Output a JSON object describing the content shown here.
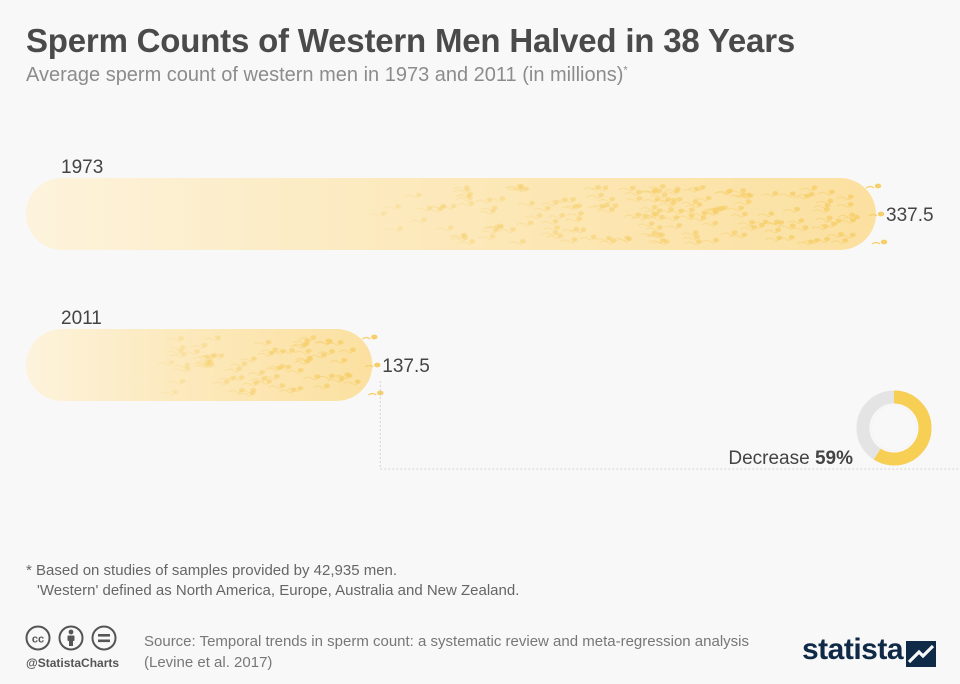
{
  "header": {
    "title": "Sperm Counts of Western Men Halved in 38 Years",
    "subtitle": "Average sperm count of western men in 1973 and 2011 (in millions)",
    "subtitle_marker": "*"
  },
  "chart_data": {
    "type": "bar",
    "orientation": "horizontal",
    "title": "Sperm Counts of Western Men Halved in 38 Years",
    "subtitle": "Average sperm count of western men in 1973 and 2011 (in millions)*",
    "categories": [
      "1973",
      "2011"
    ],
    "values": [
      337.5,
      137.5
    ],
    "value_labels": [
      "337.5",
      "137.5"
    ],
    "annotation": {
      "label": "Decrease",
      "value_label": "59%",
      "value": 0.59
    },
    "colors": {
      "bar_start": "#fdf1d8",
      "bar_end": "#fbe2a2",
      "sperm": "#f6cf6a",
      "donut_fill": "#f8cf55",
      "donut_track": "#e4e4e4"
    }
  },
  "notes": {
    "line1": "* Based on studies of samples provided by 42,935 men.",
    "line2": "'Western' defined as North America, Europe, Australia and New Zealand."
  },
  "footer": {
    "handle": "@StatistaCharts",
    "source": "Source: Temporal trends in sperm count: a systematic review and meta-regression analysis (Levine et al. 2017)",
    "logo_text": "statista",
    "license_icons": [
      "cc-icon",
      "attribution-icon",
      "no-derivatives-icon"
    ]
  }
}
